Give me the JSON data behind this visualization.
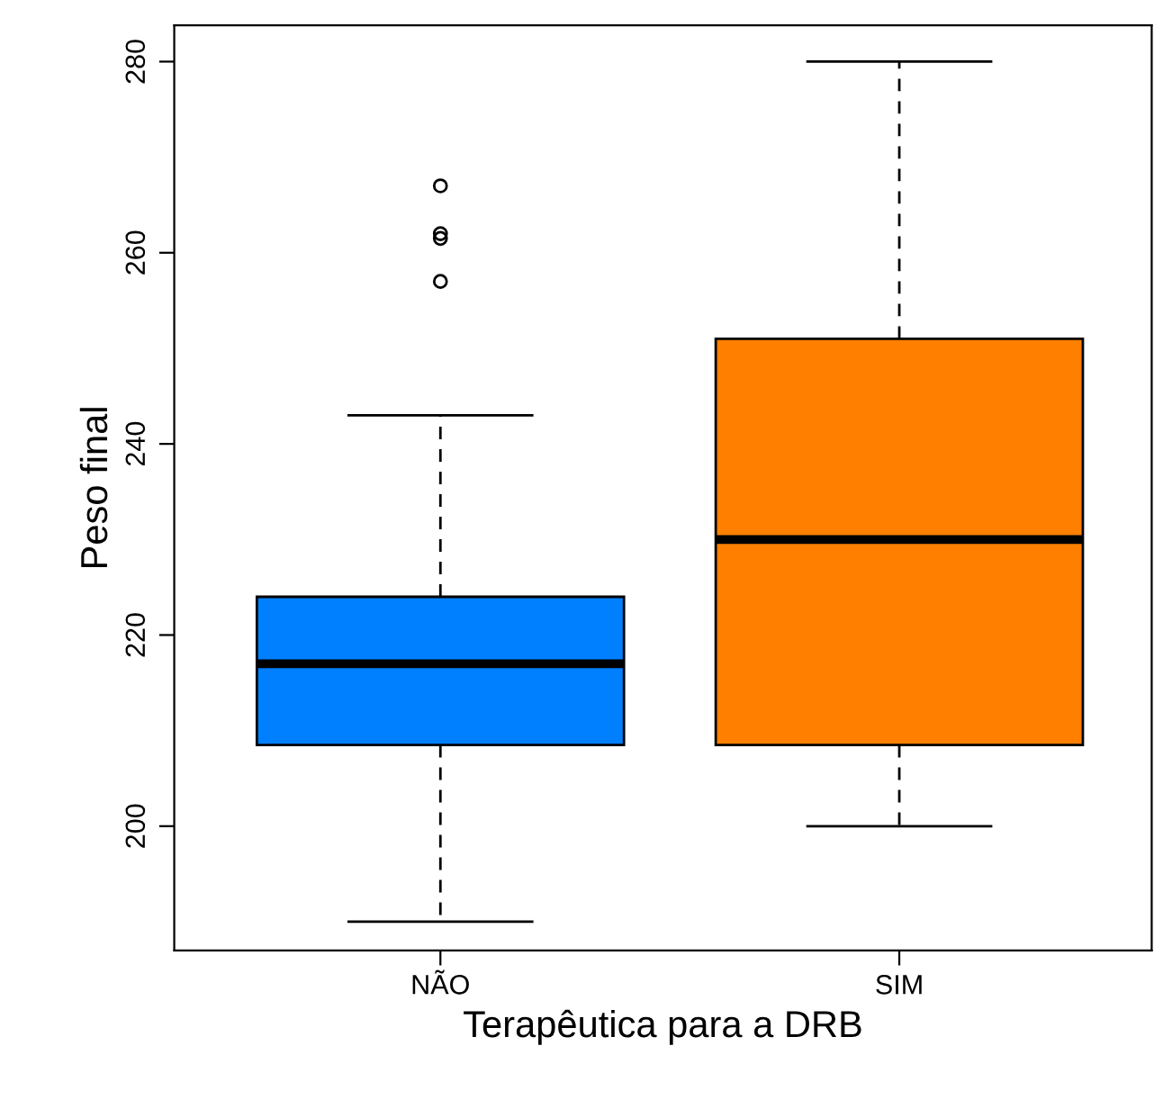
{
  "chart_data": {
    "type": "box",
    "xlabel": "Terapêutica para a DRB",
    "ylabel": "Peso final",
    "categories": [
      "NÃO",
      "SIM"
    ],
    "series": [
      {
        "colors": [
          "#0080ff",
          "#ff8000"
        ],
        "boxes": [
          {
            "low": 190,
            "q1": 208.5,
            "median": 217,
            "q3": 224,
            "high": 243,
            "outliers": [
              257,
              261.5,
              262,
              267
            ]
          },
          {
            "low": 200,
            "q1": 208.5,
            "median": 230,
            "q3": 251,
            "high": 280
          }
        ]
      }
    ],
    "ylim": [
      187,
      283.8
    ],
    "yticks": [
      200,
      220,
      240,
      260,
      280
    ],
    "grid": false,
    "legend": false
  }
}
